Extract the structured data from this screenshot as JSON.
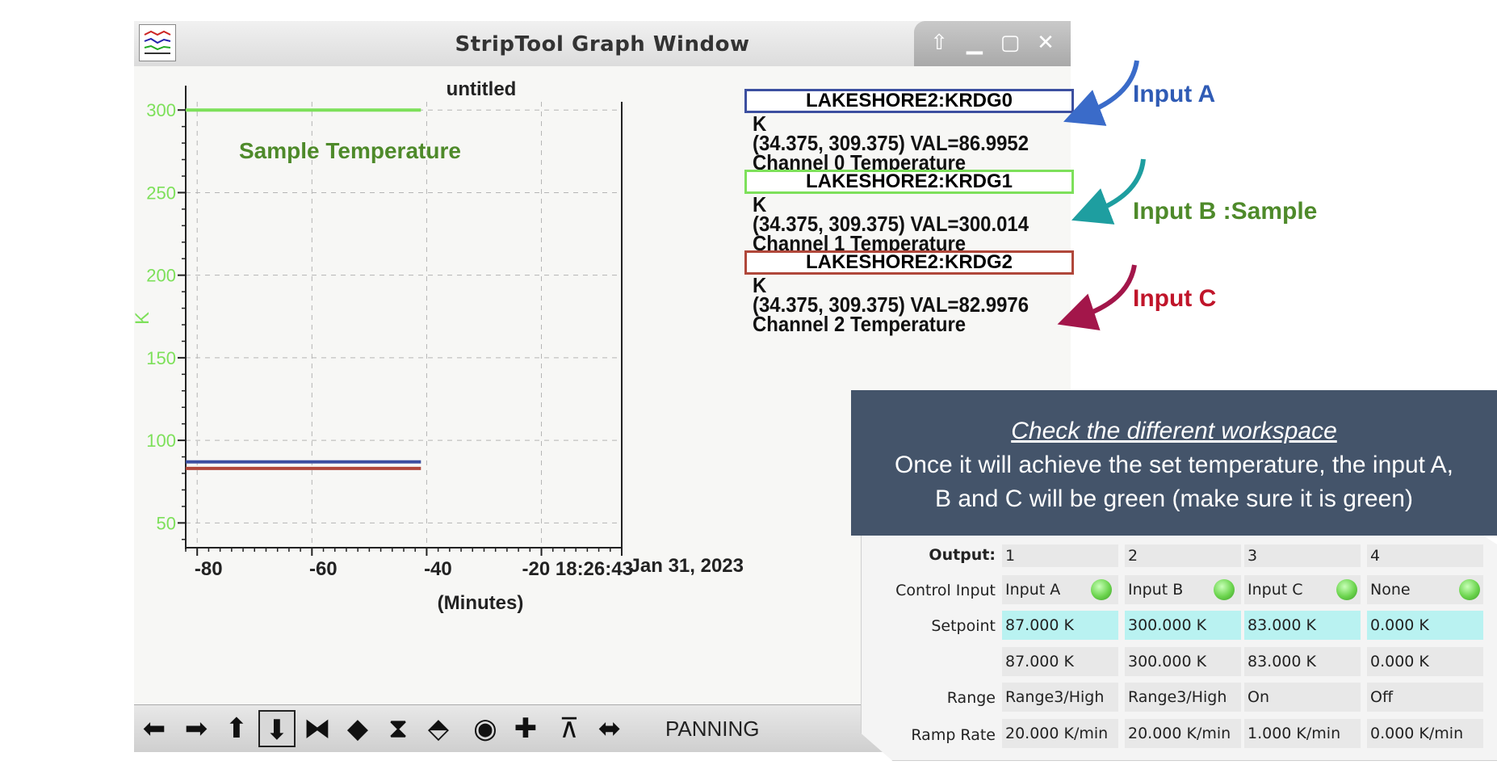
{
  "window": {
    "title": "StripTool Graph Window",
    "icon": "striptool-app-icon",
    "buttons": [
      "up-arrow-icon",
      "minimize-icon",
      "maximize-icon",
      "close-icon"
    ]
  },
  "chart_data": {
    "type": "line",
    "title": "untitled",
    "ylabel": "K",
    "xlabel": "(Minutes)",
    "ylim": [
      35,
      305
    ],
    "xlim": [
      -82,
      -6
    ],
    "yticks": [
      50,
      100,
      150,
      200,
      250,
      300
    ],
    "xticks": [
      -80,
      -60,
      -40,
      -20
    ],
    "x_tick_labels": [
      "-80",
      "-60",
      "-40",
      "-20 18:26:43"
    ],
    "date_label": "Jan 31, 2023",
    "grid": true,
    "series": [
      {
        "name": "LAKESHORE2:KRDG1",
        "color": "#7de05a",
        "x": [
          -82,
          -41
        ],
        "values": [
          300.014,
          300.014
        ]
      },
      {
        "name": "LAKESHORE2:KRDG0",
        "color": "#3c4fa0",
        "x": [
          -82,
          -41
        ],
        "values": [
          86.9952,
          86.9952
        ]
      },
      {
        "name": "LAKESHORE2:KRDG2",
        "color": "#b0473a",
        "x": [
          -82,
          -41
        ],
        "values": [
          82.9976,
          82.9976
        ]
      }
    ]
  },
  "annotation_sample": "Sample Temperature",
  "legend": [
    {
      "name": "LAKESHORE2:KRDG0",
      "color": "#3c4fa0",
      "unit": "K",
      "range": "(34.375, 309.375) VAL=86.9952",
      "desc": "Channel 0 Temperature"
    },
    {
      "name": "LAKESHORE2:KRDG1",
      "color": "#7de05a",
      "unit": "K",
      "range": "(34.375, 309.375) VAL=300.014",
      "desc": "Channel 1 Temperature"
    },
    {
      "name": "LAKESHORE2:KRDG2",
      "color": "#b0473a",
      "unit": "K",
      "range": "(34.375, 309.375)  VAL=82.9976",
      "desc": "Channel 2 Temperature"
    }
  ],
  "toolbar": {
    "buttons": [
      "left-arrow-icon",
      "right-arrow-icon",
      "up-arrow-icon",
      "down-arrow-icon",
      "zoom-in-x-icon",
      "zoom-out-x-icon",
      "zoom-in-y-icon",
      "zoom-out-y-icon",
      "refresh-icon",
      "add-icon",
      "auto-scale-icon",
      "pan-icon"
    ],
    "mode": "PANNING"
  },
  "annotations": {
    "input_a": "Input A",
    "input_b": "Input B :Sample",
    "input_c": "Input C",
    "input_a_color": "#2f5bb5",
    "input_b_color": "#4e8a2a",
    "input_c_color": "#c0152a"
  },
  "info": {
    "title": "Check the different workspace",
    "line1": "Once it will achieve the set temperature,  the input A,",
    "line2": "B and C will be green (make sure it is green)"
  },
  "panel": {
    "output_label": "Output:",
    "outputs": [
      "1",
      "2",
      "3",
      "4"
    ],
    "control_input_label": "Control Input",
    "control_inputs": [
      "Input A",
      "Input B",
      "Input C",
      "None"
    ],
    "setpoint_label": "Setpoint",
    "setpoints": [
      "87.000 K",
      "300.000 K",
      "83.000 K",
      "0.000 K"
    ],
    "setpoint_readbacks": [
      "87.000 K",
      "300.000 K",
      "83.000 K",
      "0.000 K"
    ],
    "range_label": "Range",
    "ranges": [
      "Range3/High",
      "Range3/High",
      "On",
      "Off"
    ],
    "ramp_label": "Ramp Rate",
    "ramps": [
      "20.000 K/min",
      "20.000 K/min",
      "1.000 K/min",
      "0.000 K/min"
    ]
  }
}
